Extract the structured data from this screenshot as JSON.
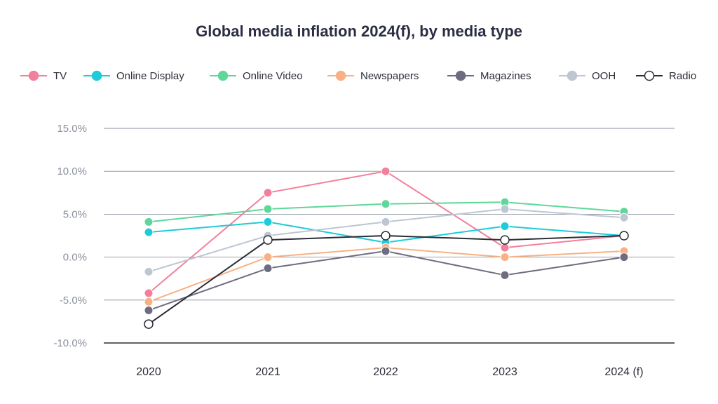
{
  "chart_data": {
    "type": "line",
    "title": "Global media inflation 2024(f), by media type",
    "xlabel": "",
    "ylabel": "",
    "categories": [
      "2020",
      "2021",
      "2022",
      "2023",
      "2024 (f)"
    ],
    "ylim": [
      -10,
      15
    ],
    "yticks": [
      15,
      10,
      5,
      0,
      -5,
      -10
    ],
    "ytick_labels": [
      "15.0%",
      "10.0%",
      "5.0%",
      "0.0%",
      "-5.0%",
      "-10.0%"
    ],
    "grid": "horizontal",
    "legend_position": "top",
    "series": [
      {
        "name": "TV",
        "color": "#f2809c",
        "values": [
          -4.2,
          7.5,
          10.0,
          1.1,
          2.5
        ]
      },
      {
        "name": "Online Display",
        "color": "#1ecbd9",
        "values": [
          2.9,
          4.1,
          1.7,
          3.6,
          2.5
        ]
      },
      {
        "name": "Online Video",
        "color": "#5fd69a",
        "values": [
          4.1,
          5.6,
          6.2,
          6.4,
          5.3
        ]
      },
      {
        "name": "Newspapers",
        "color": "#f7b184",
        "values": [
          -5.2,
          0.0,
          1.1,
          0.0,
          0.7
        ]
      },
      {
        "name": "Magazines",
        "color": "#6e6d80",
        "values": [
          -6.2,
          -1.3,
          0.7,
          -2.1,
          0.0
        ]
      },
      {
        "name": "OOH",
        "color": "#bec6d2",
        "values": [
          -1.7,
          2.5,
          4.1,
          5.6,
          4.6
        ]
      },
      {
        "name": "Radio",
        "color": "#2b2d36",
        "hollow": true,
        "values": [
          -7.8,
          2.0,
          2.5,
          2.0,
          2.5
        ]
      }
    ]
  }
}
